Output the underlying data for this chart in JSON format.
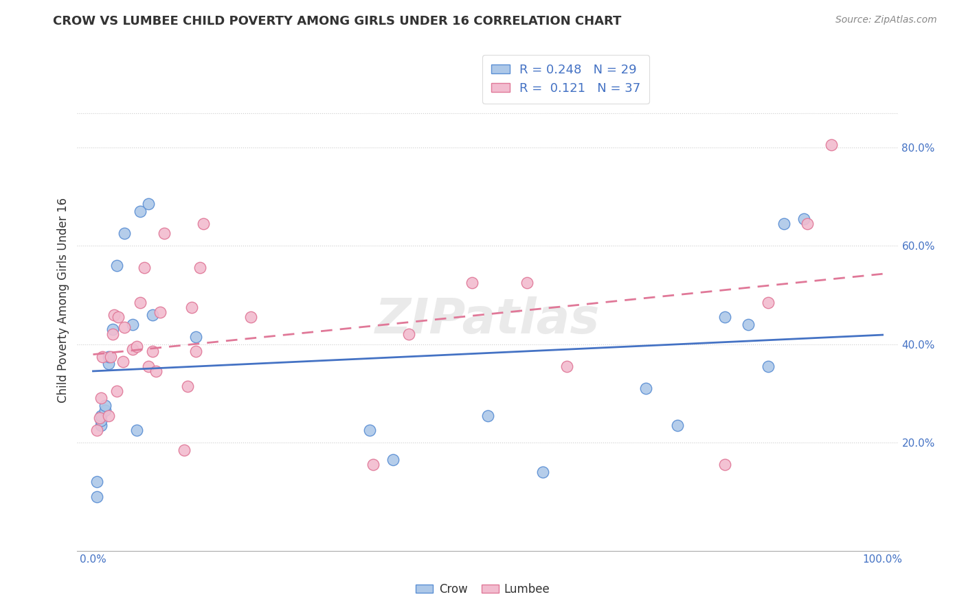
{
  "title": "CROW VS LUMBEE CHILD POVERTY AMONG GIRLS UNDER 16 CORRELATION CHART",
  "source": "Source: ZipAtlas.com",
  "ylabel": "Child Poverty Among Girls Under 16",
  "xlim": [
    -0.02,
    1.02
  ],
  "ylim": [
    -0.02,
    1.0
  ],
  "yticks": [
    0.2,
    0.4,
    0.6,
    0.8
  ],
  "ytick_labels": [
    "20.0%",
    "40.0%",
    "60.0%",
    "80.0%"
  ],
  "crow_color": "#adc8e8",
  "lumbee_color": "#f2bccf",
  "crow_edge_color": "#5b8fd4",
  "lumbee_edge_color": "#e07898",
  "crow_line_color": "#4472c4",
  "lumbee_line_color": "#e07898",
  "crow_R": 0.248,
  "crow_N": 29,
  "lumbee_R": 0.121,
  "lumbee_N": 37,
  "legend_R_N_color": "#4472c4",
  "watermark": "ZIPatlas",
  "crow_x": [
    0.005,
    0.005,
    0.01,
    0.01,
    0.01,
    0.015,
    0.015,
    0.02,
    0.02,
    0.025,
    0.03,
    0.04,
    0.05,
    0.055,
    0.06,
    0.07,
    0.075,
    0.13,
    0.35,
    0.38,
    0.5,
    0.57,
    0.7,
    0.74,
    0.8,
    0.83,
    0.855,
    0.875,
    0.9
  ],
  "crow_y": [
    0.09,
    0.12,
    0.235,
    0.245,
    0.255,
    0.265,
    0.275,
    0.36,
    0.375,
    0.43,
    0.56,
    0.625,
    0.44,
    0.225,
    0.67,
    0.685,
    0.46,
    0.415,
    0.225,
    0.165,
    0.255,
    0.14,
    0.31,
    0.235,
    0.455,
    0.44,
    0.355,
    0.645,
    0.655
  ],
  "lumbee_x": [
    0.005,
    0.008,
    0.01,
    0.012,
    0.02,
    0.022,
    0.025,
    0.027,
    0.03,
    0.032,
    0.038,
    0.04,
    0.05,
    0.055,
    0.06,
    0.065,
    0.07,
    0.075,
    0.08,
    0.085,
    0.09,
    0.115,
    0.12,
    0.125,
    0.13,
    0.135,
    0.14,
    0.2,
    0.355,
    0.4,
    0.48,
    0.55,
    0.6,
    0.8,
    0.855,
    0.905,
    0.935
  ],
  "lumbee_y": [
    0.225,
    0.25,
    0.29,
    0.375,
    0.255,
    0.375,
    0.42,
    0.46,
    0.305,
    0.455,
    0.365,
    0.435,
    0.39,
    0.395,
    0.485,
    0.555,
    0.355,
    0.385,
    0.345,
    0.465,
    0.625,
    0.185,
    0.315,
    0.475,
    0.385,
    0.555,
    0.645,
    0.455,
    0.155,
    0.42,
    0.525,
    0.525,
    0.355,
    0.155,
    0.485,
    0.645,
    0.805
  ]
}
